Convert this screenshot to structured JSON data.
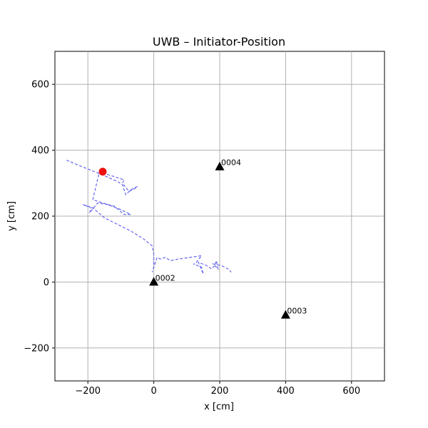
{
  "chart_data": {
    "type": "scatter",
    "title": "UWB – Initiator-Position",
    "xlabel": "x [cm]",
    "ylabel": "y [cm]",
    "xlim": [
      -300,
      700
    ],
    "ylim": [
      -300,
      700
    ],
    "xticks": [
      -200,
      0,
      200,
      400,
      600
    ],
    "yticks": [
      -200,
      0,
      200,
      400,
      600
    ],
    "grid": true,
    "trajectory": {
      "color": "#5a5aee",
      "style": "dashed",
      "x": [
        -265,
        -230,
        -155,
        -110,
        -95,
        -85,
        -70,
        -50,
        -55,
        -75,
        -95,
        -90,
        -120,
        -145,
        -165,
        -185,
        -155,
        -120,
        -90,
        -70,
        -100,
        -140,
        -170,
        -195,
        -190,
        -215,
        -185,
        -150,
        -110,
        -70,
        -30,
        -5,
        0,
        0,
        -5,
        2,
        10,
        20,
        35,
        50,
        75,
        110,
        145,
        125,
        120,
        145,
        150,
        135,
        160,
        175,
        185,
        190,
        195,
        180,
        205,
        225,
        235
      ],
      "y": [
        370,
        355,
        325,
        305,
        295,
        265,
        280,
        290,
        285,
        275,
        300,
        310,
        320,
        328,
        335,
        250,
        240,
        230,
        205,
        205,
        220,
        235,
        240,
        210,
        225,
        235,
        225,
        195,
        175,
        155,
        130,
        110,
        85,
        45,
        30,
        50,
        75,
        70,
        75,
        65,
        70,
        75,
        80,
        55,
        55,
        45,
        25,
        60,
        50,
        40,
        50,
        65,
        40,
        55,
        50,
        40,
        30
      ]
    },
    "current_position": {
      "x": -155,
      "y": 335,
      "color": "#ee1111"
    },
    "anchors": [
      {
        "label": "0002",
        "x": 0,
        "y": 0
      },
      {
        "label": "0003",
        "x": 400,
        "y": -100
      },
      {
        "label": "0004",
        "x": 200,
        "y": 350
      }
    ]
  }
}
